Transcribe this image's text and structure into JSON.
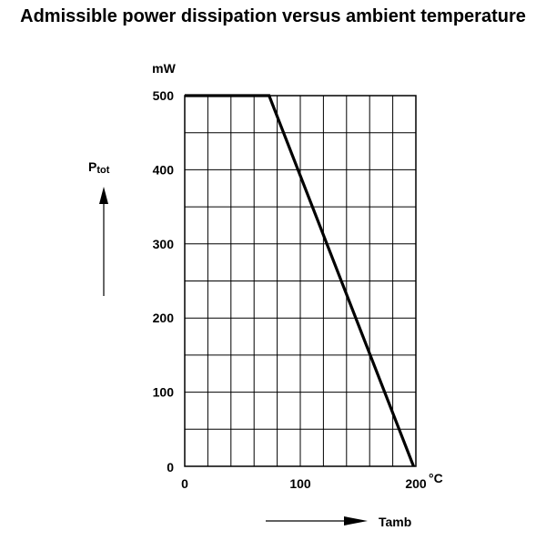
{
  "chart_data": {
    "type": "line",
    "title": "Admissible power dissipation versus ambient temperature",
    "ylabel": "Ptot",
    "ylabel_main": "P",
    "ylabel_sub": "tot",
    "yunit": "mW",
    "xlabel": "Tamb",
    "xunit": "°C",
    "xlim": [
      0,
      200
    ],
    "ylim": [
      0,
      500
    ],
    "xticks": [
      0,
      100,
      200
    ],
    "yticks": [
      0,
      100,
      200,
      300,
      400,
      500
    ],
    "x_grid_step": 20,
    "y_grid_step": 50,
    "grid": true,
    "legend": "none",
    "colors": {
      "line": "#000000",
      "grid": "#000000",
      "text": "#000000"
    },
    "series": [
      {
        "x": [
          0,
          73,
          198
        ],
        "y": [
          500,
          500,
          0
        ]
      }
    ]
  }
}
